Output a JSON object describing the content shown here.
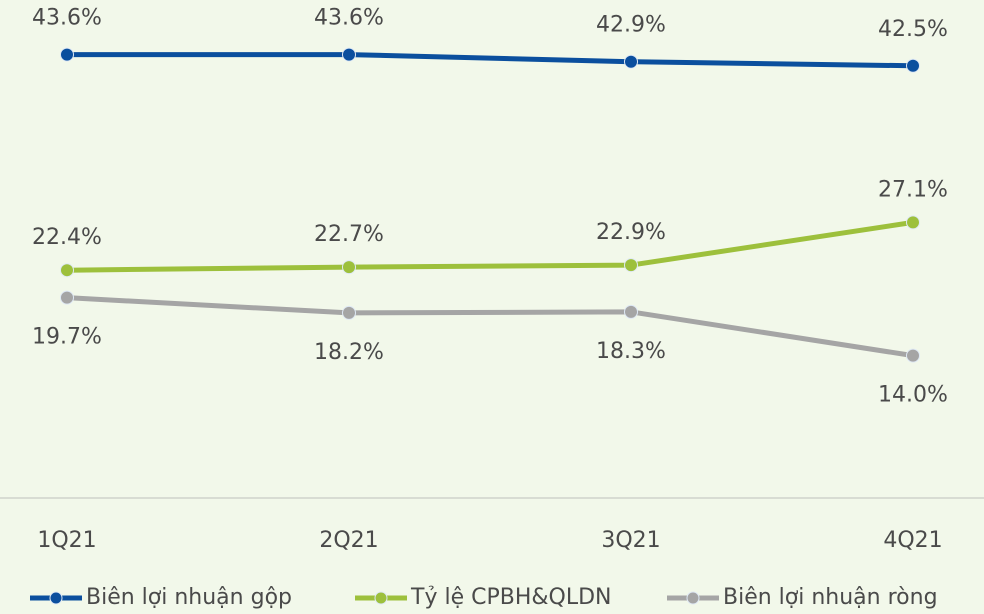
{
  "chart_data": {
    "type": "line",
    "categories": [
      "1Q21",
      "2Q21",
      "3Q21",
      "4Q21"
    ],
    "series": [
      {
        "name": "Biên lợi nhuận gộp",
        "color": "#0b4f9e",
        "values": [
          43.6,
          43.6,
          42.9,
          42.5
        ],
        "value_labels": [
          "43.6%",
          "43.6%",
          "42.9%",
          "42.5%"
        ]
      },
      {
        "name": "Tỷ lệ CPBH&QLDN",
        "color": "#9dc03c",
        "values": [
          22.4,
          22.7,
          22.9,
          27.1
        ],
        "value_labels": [
          "22.4%",
          "22.7%",
          "22.9%",
          "27.1%"
        ]
      },
      {
        "name": "Biên lợi nhuận ròng",
        "color": "#a5a5a5",
        "values": [
          19.7,
          18.2,
          18.3,
          14.0
        ],
        "value_labels": [
          "19.7%",
          "18.2%",
          "18.3%",
          "14.0%"
        ]
      }
    ],
    "ylim": [
      0,
      50
    ],
    "legend": "bottom"
  }
}
